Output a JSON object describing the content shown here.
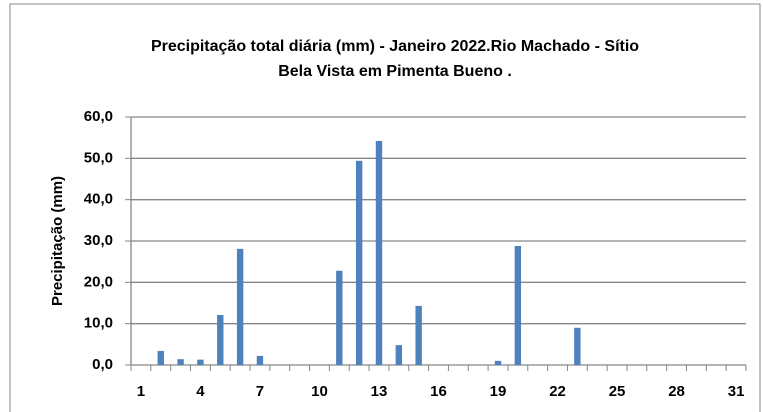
{
  "chart_data": {
    "type": "bar",
    "title": "Precipitação total diária (mm) - Janeiro 2022.Rio Machado - Sítio Bela Vista em Pimenta Bueno .",
    "y_label": "Precipitação (mm)",
    "categories": [
      "1",
      null,
      null,
      "4",
      null,
      null,
      "7",
      null,
      null,
      "10",
      null,
      null,
      "13",
      null,
      null,
      "16",
      null,
      null,
      "19",
      null,
      null,
      "22",
      null,
      null,
      "25",
      null,
      null,
      "28",
      null,
      null,
      "31"
    ],
    "values": [
      0,
      3.4,
      1.4,
      1.3,
      12.1,
      28.1,
      2.2,
      0,
      0,
      0,
      22.8,
      49.4,
      54.2,
      4.8,
      14.3,
      0,
      0,
      0,
      1.0,
      28.8,
      0,
      0,
      9.0,
      0,
      0,
      0,
      0,
      0,
      0,
      0,
      0
    ],
    "color": "#4f81bd",
    "ylim": [
      0,
      60
    ],
    "yticks": [
      {
        "value": 0,
        "label": "0,0"
      },
      {
        "value": 10,
        "label": "10,0"
      },
      {
        "value": 20,
        "label": "20,0"
      },
      {
        "value": 30,
        "label": "30,0"
      },
      {
        "value": 40,
        "label": "40,0"
      },
      {
        "value": 50,
        "label": "50,0"
      },
      {
        "value": 60,
        "label": "60,0"
      }
    ],
    "grid": true
  }
}
